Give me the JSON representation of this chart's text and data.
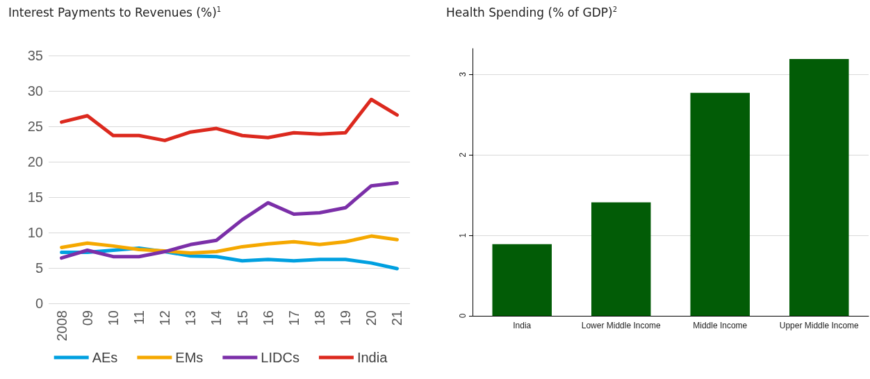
{
  "chart_data": [
    {
      "type": "line",
      "title": "Interest Payments to Revenues (%)$^{1}$",
      "categories": [
        "2008",
        "09",
        "10",
        "11",
        "12",
        "13",
        "14",
        "15",
        "16",
        "17",
        "18",
        "19",
        "20",
        "21"
      ],
      "series": [
        {
          "name": "AEs",
          "color": "#00a0e0",
          "values": [
            7.2,
            7.2,
            7.5,
            7.8,
            7.3,
            6.7,
            6.6,
            6.0,
            6.2,
            6.0,
            6.2,
            6.2,
            5.7,
            4.9
          ]
        },
        {
          "name": "EMs",
          "color": "#f5a800",
          "values": [
            7.9,
            8.5,
            8.1,
            7.6,
            7.4,
            7.1,
            7.3,
            8.0,
            8.4,
            8.7,
            8.3,
            8.7,
            9.5,
            9.0
          ]
        },
        {
          "name": "LIDCs",
          "color": "#7b2fa8",
          "values": [
            6.4,
            7.5,
            6.6,
            6.6,
            7.3,
            8.3,
            8.9,
            11.8,
            14.2,
            12.6,
            12.8,
            13.5,
            16.6,
            17.0
          ]
        },
        {
          "name": "India",
          "color": "#dc291e",
          "values": [
            25.6,
            26.5,
            23.7,
            23.7,
            23.0,
            24.2,
            24.7,
            23.7,
            23.4,
            24.1,
            23.9,
            24.1,
            28.8,
            26.6
          ]
        }
      ],
      "ylim": [
        0,
        35
      ],
      "yticks": [
        0,
        5,
        10,
        15,
        20,
        25,
        30,
        35
      ],
      "grid": "y",
      "legend": "bottom",
      "marker": "none"
    },
    {
      "type": "bar",
      "title": "Health Spending (% of GDP)$^{2}$",
      "categories": [
        "India",
        "Lower Middle Income",
        "Middle Income",
        "Upper Middle Income"
      ],
      "values": [
        0.89,
        1.41,
        2.77,
        3.19
      ],
      "color": "#025c06",
      "ylim": [
        0,
        3.32
      ],
      "yticks": [
        0,
        1,
        2,
        3
      ],
      "grid": "y"
    }
  ]
}
